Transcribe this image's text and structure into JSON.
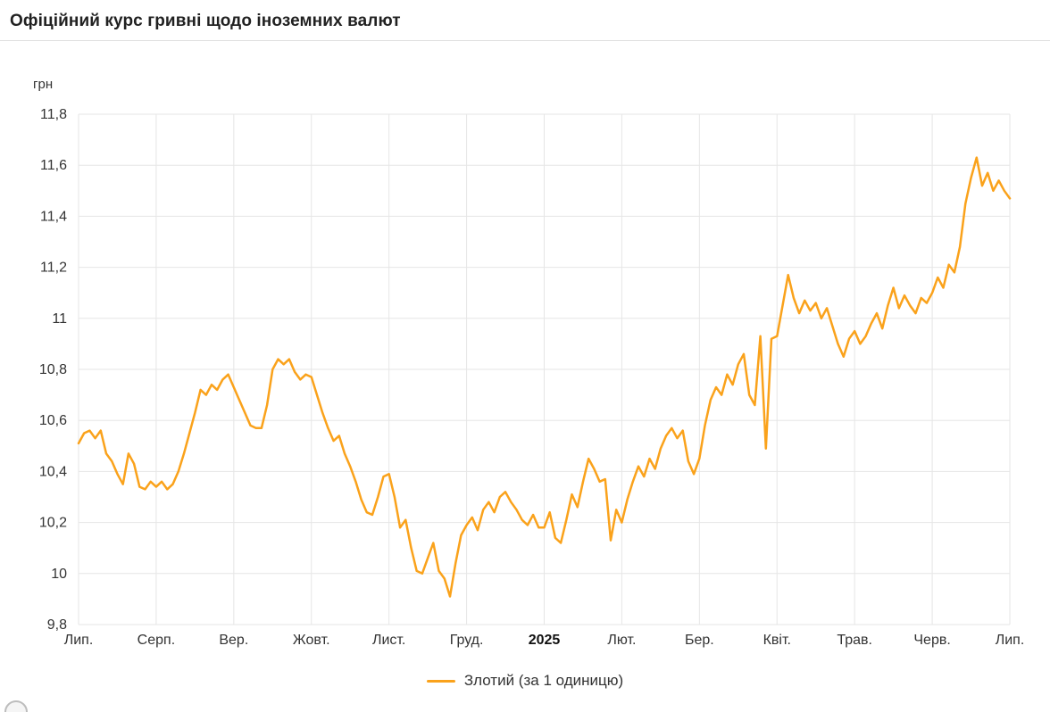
{
  "header": {
    "title": "Офіційний курс гривні щодо іноземних валют"
  },
  "chart_data": {
    "type": "line",
    "title": "Офіційний курс гривні щодо іноземних валют",
    "xlabel": "",
    "ylabel": "грн",
    "ylim": [
      9.8,
      11.8
    ],
    "grid": true,
    "legend_position": "bottom",
    "colors": {
      "line": "#faa21b",
      "grid": "#e6e6e6"
    },
    "y_ticks": [
      {
        "v": 9.8,
        "label": "9,8"
      },
      {
        "v": 10.0,
        "label": "10"
      },
      {
        "v": 10.2,
        "label": "10,2"
      },
      {
        "v": 10.4,
        "label": "10,4"
      },
      {
        "v": 10.6,
        "label": "10,6"
      },
      {
        "v": 10.8,
        "label": "10,8"
      },
      {
        "v": 11.0,
        "label": "11"
      },
      {
        "v": 11.2,
        "label": "11,2"
      },
      {
        "v": 11.4,
        "label": "11,4"
      },
      {
        "v": 11.6,
        "label": "11,6"
      },
      {
        "v": 11.8,
        "label": "11,8"
      }
    ],
    "categories": [
      "Лип.",
      "Серп.",
      "Вер.",
      "Жовт.",
      "Лист.",
      "Груд.",
      "2025",
      "Лют.",
      "Бер.",
      "Квіт.",
      "Трав.",
      "Черв.",
      "Лип."
    ],
    "bold_category": "2025",
    "series": [
      {
        "name": "Злотий (за 1 одиницю)",
        "values": [
          10.51,
          10.55,
          10.56,
          10.53,
          10.56,
          10.47,
          10.44,
          10.39,
          10.35,
          10.47,
          10.43,
          10.34,
          10.33,
          10.36,
          10.34,
          10.36,
          10.33,
          10.35,
          10.4,
          10.47,
          10.55,
          10.63,
          10.72,
          10.7,
          10.74,
          10.72,
          10.76,
          10.78,
          10.73,
          10.68,
          10.63,
          10.58,
          10.57,
          10.57,
          10.66,
          10.8,
          10.84,
          10.82,
          10.84,
          10.79,
          10.76,
          10.78,
          10.77,
          10.7,
          10.63,
          10.57,
          10.52,
          10.54,
          10.47,
          10.42,
          10.36,
          10.29,
          10.24,
          10.23,
          10.3,
          10.38,
          10.39,
          10.3,
          10.18,
          10.21,
          10.1,
          10.01,
          10.0,
          10.06,
          10.12,
          10.01,
          9.98,
          9.91,
          10.04,
          10.15,
          10.19,
          10.22,
          10.17,
          10.25,
          10.28,
          10.24,
          10.3,
          10.32,
          10.28,
          10.25,
          10.21,
          10.19,
          10.23,
          10.18,
          10.18,
          10.24,
          10.14,
          10.12,
          10.21,
          10.31,
          10.26,
          10.36,
          10.45,
          10.41,
          10.36,
          10.37,
          10.13,
          10.25,
          10.2,
          10.29,
          10.36,
          10.42,
          10.38,
          10.45,
          10.41,
          10.49,
          10.54,
          10.57,
          10.53,
          10.56,
          10.44,
          10.39,
          10.45,
          10.58,
          10.68,
          10.73,
          10.7,
          10.78,
          10.74,
          10.82,
          10.86,
          10.7,
          10.66,
          10.93,
          10.49,
          10.92,
          10.93,
          11.05,
          11.17,
          11.08,
          11.02,
          11.07,
          11.03,
          11.06,
          11.0,
          11.04,
          10.97,
          10.9,
          10.85,
          10.92,
          10.95,
          10.9,
          10.93,
          10.98,
          11.02,
          10.96,
          11.05,
          11.12,
          11.04,
          11.09,
          11.05,
          11.02,
          11.08,
          11.06,
          11.1,
          11.16,
          11.12,
          11.21,
          11.18,
          11.28,
          11.45,
          11.55,
          11.63,
          11.52,
          11.57,
          11.5,
          11.54,
          11.5,
          11.47
        ]
      }
    ],
    "legend": {
      "label": "Злотий (за 1 одиницю)"
    }
  }
}
